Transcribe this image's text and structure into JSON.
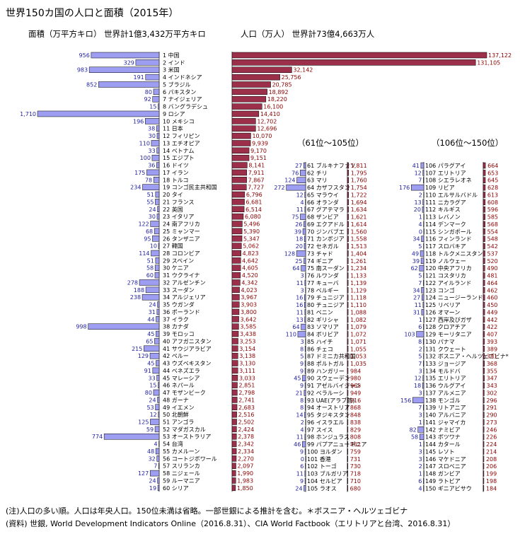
{
  "title": "世界150カ国の人口と面積（2015年）",
  "subtitle_area": "面積（万平方キロ）  世界計1億3,432万平方キロ",
  "subtitle_pop": "人口（万人）  世界計73億4,663万人",
  "section2_label": "（61位～105位）",
  "section3_label": "（106位～150位）",
  "note": "(注)人口の多い順。人口は年央人口。150位未満は省略。一部世銀による推計を含む。＊ボスニア・ヘルツェゴビナ",
  "source": "(資料) 世銀, World Development Indicators Online（2016.8.31）、CIA World Factbook（エリトリアと台湾、2016.8.31）",
  "colors": {
    "area_bar": "#9d9df2",
    "pop_bar": "#9c2f4a"
  },
  "chart_data": [
    {
      "type": "bar",
      "title": "面積（万平方キロ）",
      "categories": [
        "1 中国",
        "2 インド",
        "3 米国",
        "4 インドネシア",
        "5 ブラジル",
        "6 パキスタン",
        "7 ナイジェリア",
        "8 バングラデシュ",
        "9 ロシア",
        "10 メキシコ",
        "11 日本",
        "12 フィリピン",
        "13 エチオピア",
        "14 ベトナム",
        "15 エジプト",
        "16 ドイツ",
        "17 イラン",
        "18 トルコ",
        "19 コンゴ民主共和国",
        "20 タイ",
        "21 フランス",
        "22 英国",
        "23 イタリア",
        "24 南アフリカ",
        "25 ミャンマー",
        "26 タンザニア",
        "27 韓国",
        "28 コロンビア",
        "29 スペイン",
        "30 ケニア",
        "31 ウクライナ",
        "32 アルゼンチン",
        "33 スーダン",
        "34 アルジェリア",
        "35 ウガンダ",
        "36 ポーランド",
        "37 イラク",
        "38 カナダ",
        "39 モロッコ",
        "40 アフガニスタン",
        "41 サウジアラビア",
        "42 ペルー",
        "43 ウズベキスタン",
        "44 ベネズエラ",
        "45 マレーシア",
        "46 ネパール",
        "47 モザンビーク",
        "48 ガーナ",
        "49 イエメン",
        "50 北朝鮮",
        "51 アンゴラ",
        "52 マダガスカル",
        "53 オーストラリア",
        "54 台湾",
        "55 カメルーン",
        "56 コートジボワール",
        "57 スリランカ",
        "58 ニジェール",
        "59 ルーマニア",
        "60 シリア"
      ],
      "values": [
        956,
        329,
        983,
        191,
        852,
        80,
        92,
        15,
        1710,
        196,
        38,
        30,
        110,
        33,
        100,
        36,
        175,
        78,
        234,
        51,
        55,
        24,
        30,
        122,
        68,
        95,
        10,
        114,
        51,
        58,
        60,
        278,
        188,
        238,
        24,
        31,
        44,
        998,
        45,
        65,
        215,
        129,
        45,
        91,
        33,
        15,
        80,
        24,
        53,
        12,
        125,
        59,
        774,
        4,
        48,
        32,
        7,
        127,
        24,
        19
      ]
    },
    {
      "type": "bar",
      "title": "人口（万人）",
      "categories": [
        "1 中国",
        "2 インド",
        "3 米国",
        "4 インドネシア",
        "5 ブラジル",
        "6 パキスタン",
        "7 ナイジェリア",
        "8 バングラデシュ",
        "9 ロシア",
        "10 メキシコ",
        "11 日本",
        "12 フィリピン",
        "13 エチオピア",
        "14 ベトナム",
        "15 エジプト",
        "16 ドイツ",
        "17 イラン",
        "18 トルコ",
        "19 コンゴ民主共和国",
        "20 タイ",
        "21 フランス",
        "22 英国",
        "23 イタリア",
        "24 南アフリカ",
        "25 ミャンマー",
        "26 タンザニア",
        "27 韓国",
        "28 コロンビア",
        "29 スペイン",
        "30 ケニア",
        "31 ウクライナ",
        "32 アルゼンチン",
        "33 スーダン",
        "34 アルジェリア",
        "35 ウガンダ",
        "36 ポーランド",
        "37 イラク",
        "38 カナダ",
        "39 モロッコ",
        "40 アフガニスタン",
        "41 サウジアラビア",
        "42 ペルー",
        "43 ウズベキスタン",
        "44 ベネズエラ",
        "45 マレーシア",
        "46 ネパール",
        "47 モザンビーク",
        "48 ガーナ",
        "49 イエメン",
        "50 北朝鮮",
        "51 アンゴラ",
        "52 マダガスカル",
        "53 オーストラリア",
        "54 台湾",
        "55 カメルーン",
        "56 コートジボワール",
        "57 スリランカ",
        "58 ニジェール",
        "59 ルーマニア",
        "60 シリア"
      ],
      "values": [
        137122,
        131105,
        32142,
        25756,
        20785,
        18892,
        18220,
        16100,
        14410,
        12702,
        12696,
        10070,
        9939,
        9170,
        9151,
        8141,
        7911,
        7867,
        7727,
        6796,
        6681,
        6514,
        6080,
        5496,
        5390,
        5347,
        5062,
        4823,
        4642,
        4605,
        4520,
        4342,
        4023,
        3967,
        3903,
        3800,
        3642,
        3585,
        3438,
        3253,
        3154,
        3138,
        3130,
        3111,
        3033,
        2851,
        2798,
        2741,
        2683,
        2516,
        2502,
        2424,
        2378,
        2342,
        2334,
        2270,
        2097,
        1990,
        1983,
        1850
      ],
      "values_labels": [
        "137,122",
        "131,105",
        "32,142",
        "25,756",
        "20,785",
        "18,892",
        "18,220",
        "16,100",
        "14,410",
        "12,702",
        "12,696",
        "10,070",
        "9,939",
        "9,170",
        "9,151",
        "8,141",
        "7,911",
        "7,867",
        "7,727",
        "6,796",
        "6,681",
        "6,514",
        "6,080",
        "5,496",
        "5,390",
        "5,347",
        "5,062",
        "4,823",
        "4,642",
        "4,605",
        "4,520",
        "4,342",
        "4,023",
        "3,967",
        "3,903",
        "3,800",
        "3,642",
        "3,585",
        "3,438",
        "3,253",
        "3,154",
        "3,138",
        "3,130",
        "3,111",
        "3,033",
        "2,851",
        "2,798",
        "2,741",
        "2,683",
        "2,516",
        "2,502",
        "2,424",
        "2,378",
        "2,342",
        "2,334",
        "2,270",
        "2,097",
        "1,990",
        "1,983",
        "1,850"
      ]
    },
    {
      "type": "bar",
      "title": "（61位～105位）",
      "categories": [
        "61 ブルキナファソ",
        "62 チリ",
        "63 マリ",
        "64 カザフスタン",
        "65 マラウイ",
        "66 オランダ",
        "67 グアテマラ",
        "68 ザンビア",
        "69 エクアドル",
        "70 ジンバブエ",
        "71 カンボジア",
        "72 セネガル",
        "73 チャド",
        "74 ギニア",
        "75 南スーダン",
        "76 ルワンダ",
        "77 キューバ",
        "78 ベルギー",
        "79 チュニジア",
        "80 チュニジア",
        "81 ベニン",
        "82 ギリシャ",
        "83 ソマリア",
        "84 ボリビア",
        "85 ハイチ",
        "86 チェコ",
        "87 ドミニカ共和国",
        "88 ポルトガル",
        "89 ハンガリー",
        "90 スウェーデン",
        "91 アゼルバイジャン",
        "92 ベラルーシ",
        "93 UAE(アラブ首)",
        "94 オーストリア",
        "95 タジキスタン",
        "96 イスラエル",
        "97 スイス",
        "98 ホンジュラス",
        "99 パプアニューギニア",
        "100 ヨルダン",
        "101 香港",
        "102 トーゴ",
        "103 ブルガリア",
        "104 セルビア",
        "105 ラオス"
      ],
      "area": [
        27,
        76,
        124,
        272,
        12,
        4,
        11,
        75,
        26,
        39,
        18,
        20,
        128,
        25,
        64,
        3,
        11,
        3,
        16,
        16,
        11,
        13,
        64,
        110,
        3,
        8,
        5,
        9,
        9,
        45,
        9,
        21,
        8,
        8,
        14,
        2,
        4,
        11,
        46,
        9,
        0,
        6,
        11,
        9,
        24
      ],
      "pop": [
        1811,
        1795,
        1760,
        1754,
        1722,
        1694,
        1634,
        1621,
        1614,
        1560,
        1558,
        1513,
        1404,
        1261,
        1234,
        1133,
        1139,
        1129,
        1118,
        1110,
        1088,
        1082,
        1079,
        1072,
        1071,
        1055,
        1053,
        1035,
        984,
        980,
        965,
        949,
        916,
        868,
        848,
        838,
        829,
        808,
        762,
        759,
        731,
        730,
        718,
        710,
        680
      ],
      "pop_labels": [
        "1,811",
        "1,795",
        "1,760",
        "1,754",
        "1,722",
        "1,694",
        "1,634",
        "1,621",
        "1,614",
        "1,560",
        "1,558",
        "1,513",
        "1,404",
        "1,261",
        "1,234",
        "1,133",
        "1,139",
        "1,129",
        "1,118",
        "1,110",
        "1,088",
        "1,082",
        "1,079",
        "1,072",
        "1,071",
        "1,055",
        "1,053",
        "1,035",
        "984",
        "980",
        "965",
        "949",
        "916",
        "868",
        "848",
        "838",
        "829",
        "808",
        "762",
        "759",
        "731",
        "730",
        "718",
        "710",
        "680"
      ]
    },
    {
      "type": "bar",
      "title": "（106位～150位）",
      "categories": [
        "106 パラグアイ",
        "107 エリトリア",
        "108 シエラレオネ",
        "109 リビア",
        "110 エルサルバドル",
        "111 ニカラグア",
        "112 キルギス",
        "113 レバノン",
        "114 デンマーク",
        "115 シンガポール",
        "116 フィンランド",
        "117 スロバキア",
        "118 トルクメニスタン",
        "119 ノルウェー",
        "120 中央アフリカ",
        "121 コスタリカ",
        "122 アイルランド",
        "123 コンゴ",
        "124 ニュージーランド",
        "125 リベリア",
        "126 オマーン",
        "127 西岸及びガザ",
        "128 クロアチア",
        "129 モーリタニア",
        "130 パナマ",
        "131 クウェート",
        "132 ボスニア・ヘルツェゴビナ*",
        "133 ジョージア",
        "134 モルドバ",
        "135 エリトリア",
        "136 ウルグアイ",
        "137 アルメニア",
        "138 モンゴル",
        "139 リトアニア",
        "140 アルバニア",
        "141 ジャマイカ",
        "142 ナミビア",
        "143 ボツワナ",
        "144 カタール",
        "145 レソト",
        "146 マケドニア",
        "147 スロベニア",
        "148 ガンビア",
        "149 ラトビア",
        "150 ギニアビサウ"
      ],
      "area": [
        41,
        12,
        7,
        176,
        2,
        13,
        20,
        1,
        4,
        0,
        34,
        5,
        49,
        39,
        62,
        5,
        7,
        34,
        27,
        11,
        31,
        1,
        6,
        103,
        8,
        2,
        5,
        7,
        3,
        12,
        18,
        3,
        156,
        7,
        3,
        1,
        82,
        58,
        1,
        3,
        3,
        2,
        1,
        6,
        4
      ],
      "pop": [
        664,
        653,
        645,
        628,
        613,
        608,
        596,
        585,
        568,
        554,
        548,
        542,
        537,
        520,
        490,
        481,
        464,
        462,
        460,
        450,
        449,
        442,
        422,
        407,
        393,
        389,
        381,
        368,
        355,
        347,
        343,
        302,
        296,
        291,
        290,
        273,
        246,
        226,
        224,
        214,
        208,
        206,
        199,
        198,
        184
      ]
    }
  ]
}
